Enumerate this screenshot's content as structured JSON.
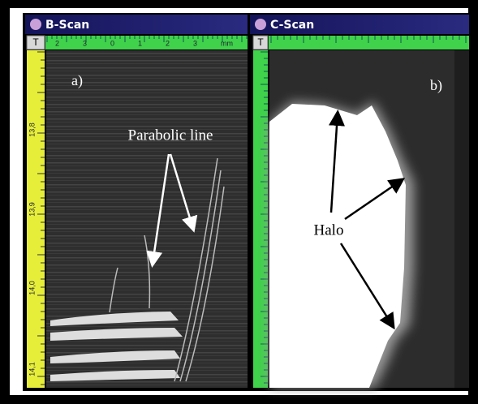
{
  "bscan": {
    "title": "B-Scan",
    "tool": "T",
    "ruler_top": [
      "2",
      "3",
      "0",
      "1",
      "2",
      "3",
      "mm"
    ],
    "ruler_left": [
      "13,8",
      "13,9",
      "14,0",
      "14,1"
    ],
    "panel_label": "a)",
    "annotation": "Parabolic line"
  },
  "cscan": {
    "title": "C-Scan",
    "tool": "T",
    "panel_label": "b)",
    "annotation": "Halo"
  }
}
